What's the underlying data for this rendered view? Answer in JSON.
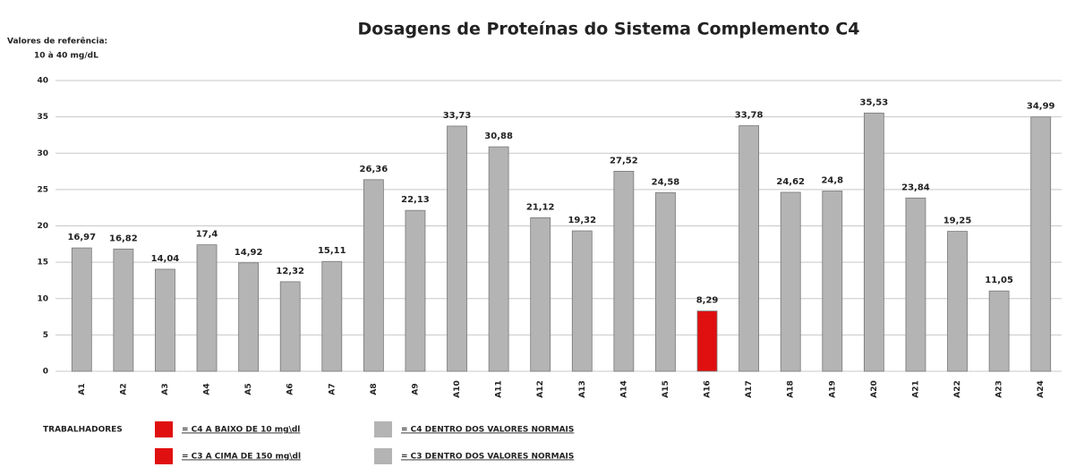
{
  "chart_data": {
    "type": "bar",
    "title": "Dosagens de Proteínas do  Sistema Complemento C4",
    "annotations": [
      "Valores de referência:",
      "10 à 40 mg/dL"
    ],
    "categories": [
      "A1",
      "A2",
      "A3",
      "A4",
      "A5",
      "A6",
      "A7",
      "A8",
      "A9",
      "A10",
      "A11",
      "A12",
      "A13",
      "A14",
      "A15",
      "A16",
      "A17",
      "A18",
      "A19",
      "A20",
      "A21",
      "A22",
      "A23",
      "A24"
    ],
    "values": [
      16.97,
      16.82,
      14.04,
      17.4,
      14.92,
      12.32,
      15.11,
      26.36,
      22.13,
      33.73,
      30.88,
      21.12,
      19.32,
      27.52,
      24.58,
      8.29,
      33.78,
      24.62,
      24.8,
      35.53,
      23.84,
      19.25,
      11.05,
      34.99
    ],
    "value_labels": [
      "16,97",
      "16,82",
      "14,04",
      "17,4",
      "14,92",
      "12,32",
      "15,11",
      "26,36",
      "22,13",
      "33,73",
      "30,88",
      "21,12",
      "19,32",
      "27,52",
      "24,58",
      "8,29",
      "33,78",
      "24,62",
      "24,8",
      "35,53",
      "23,84",
      "19,25",
      "11,05",
      "34,99"
    ],
    "colors": [
      "#b4b4b4",
      "#b4b4b4",
      "#b4b4b4",
      "#b4b4b4",
      "#b4b4b4",
      "#b4b4b4",
      "#b4b4b4",
      "#b4b4b4",
      "#b4b4b4",
      "#b4b4b4",
      "#b4b4b4",
      "#b4b4b4",
      "#b4b4b4",
      "#b4b4b4",
      "#b4b4b4",
      "#e01010",
      "#b4b4b4",
      "#b4b4b4",
      "#b4b4b4",
      "#b4b4b4",
      "#b4b4b4",
      "#b4b4b4",
      "#b4b4b4",
      "#b4b4b4"
    ],
    "ylim": [
      0,
      40
    ],
    "yticks": [
      0,
      5,
      10,
      15,
      20,
      25,
      30,
      35,
      40
    ],
    "grid": true,
    "legend_title": "TRABALHADORES",
    "legend": [
      {
        "label": "= C4 A BAIXO DE 10 mg\\dl",
        "color": "#e01010"
      },
      {
        "label": "= C4 DENTRO DOS VALORES NORMAIS",
        "color": "#b4b4b4"
      },
      {
        "label": "= C3 A CIMA DE 150 mg\\dl",
        "color": "#e01010"
      },
      {
        "label": "= C3 DENTRO DOS VALORES NORMAIS",
        "color": "#b4b4b4"
      }
    ]
  }
}
